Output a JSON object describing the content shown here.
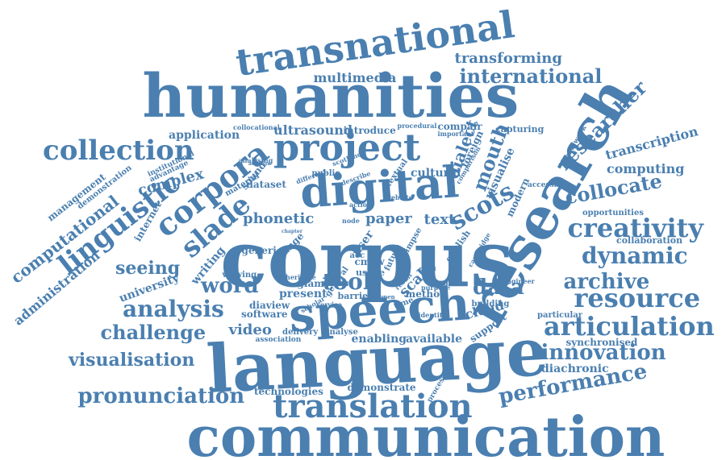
{
  "cloud": {
    "color": "#4a7fb0",
    "words": [
      {
        "text": "communication"
      },
      {
        "text": "language"
      },
      {
        "text": "corpus"
      },
      {
        "text": "speech"
      },
      {
        "text": "research"
      },
      {
        "text": "humanities"
      },
      {
        "text": "digital"
      },
      {
        "text": "project"
      },
      {
        "text": "transnational"
      },
      {
        "text": "translation"
      },
      {
        "text": "corpora"
      },
      {
        "text": "linguistic"
      },
      {
        "text": "slade"
      },
      {
        "text": "collection"
      },
      {
        "text": "scots"
      },
      {
        "text": "creativity"
      },
      {
        "text": "dynamic"
      },
      {
        "text": "resource"
      },
      {
        "text": "articulation"
      },
      {
        "text": "archive"
      },
      {
        "text": "analysis"
      },
      {
        "text": "word"
      },
      {
        "text": "tool"
      },
      {
        "text": "data"
      },
      {
        "text": "innovation"
      },
      {
        "text": "performance"
      },
      {
        "text": "pronunciation"
      },
      {
        "text": "visualisation"
      },
      {
        "text": "challenge"
      },
      {
        "text": "seeing"
      },
      {
        "text": "international"
      },
      {
        "text": "transforming"
      },
      {
        "text": "researcher"
      },
      {
        "text": "collocate"
      },
      {
        "text": "computational"
      },
      {
        "text": "administration"
      },
      {
        "text": "mouth"
      },
      {
        "text": "dialect"
      },
      {
        "text": "multimedia"
      },
      {
        "text": "ultrasound"
      },
      {
        "text": "application"
      },
      {
        "text": "complex"
      },
      {
        "text": "phonetic"
      },
      {
        "text": "paper"
      },
      {
        "text": "text"
      },
      {
        "text": "cultural"
      },
      {
        "text": "video"
      },
      {
        "text": "cloud"
      },
      {
        "text": "scale"
      },
      {
        "text": "enabling"
      },
      {
        "text": "available"
      },
      {
        "text": "present"
      },
      {
        "text": "software"
      },
      {
        "text": "diaview"
      },
      {
        "text": "university"
      },
      {
        "text": "writing"
      },
      {
        "text": "internet"
      },
      {
        "text": "management"
      },
      {
        "text": "demonstration"
      },
      {
        "text": "computing"
      },
      {
        "text": "transcription"
      },
      {
        "text": "visualise"
      },
      {
        "text": "foreign"
      },
      {
        "text": "modern"
      },
      {
        "text": "compair"
      },
      {
        "text": "capturing"
      },
      {
        "text": "introduce"
      },
      {
        "text": "collaboration"
      },
      {
        "text": "opportunities"
      },
      {
        "text": "synchronised"
      },
      {
        "text": "particular"
      },
      {
        "text": "diachronic"
      },
      {
        "text": "technologies"
      },
      {
        "text": "demonstrate"
      },
      {
        "text": "support"
      },
      {
        "text": "method"
      },
      {
        "text": "barrier"
      },
      {
        "text": "glam"
      },
      {
        "text": "cmsw"
      },
      {
        "text": "usage"
      },
      {
        "text": "user"
      },
      {
        "text": "generic"
      },
      {
        "text": "change"
      },
      {
        "text": "dataset"
      },
      {
        "text": "sound"
      },
      {
        "text": "material"
      },
      {
        "text": "institutional"
      },
      {
        "text": "advantage"
      },
      {
        "text": "analysing"
      },
      {
        "text": "collocational"
      },
      {
        "text": "procedural"
      },
      {
        "text": "important"
      },
      {
        "text": "comparison"
      },
      {
        "text": "framework"
      },
      {
        "text": "accessible"
      },
      {
        "text": "engineer"
      },
      {
        "text": "building"
      },
      {
        "text": "processing"
      },
      {
        "text": "identity"
      },
      {
        "text": "delivery"
      },
      {
        "text": "analyse"
      },
      {
        "text": "association"
      },
      {
        "text": "service"
      },
      {
        "text": "heritage"
      },
      {
        "text": "scholar"
      },
      {
        "text": "viewing"
      },
      {
        "text": "general"
      },
      {
        "text": "future"
      },
      {
        "text": "domain"
      },
      {
        "text": "purpose"
      },
      {
        "text": "result"
      },
      {
        "text": "english"
      },
      {
        "text": "glimpse"
      },
      {
        "text": "cambridge"
      },
      {
        "text": "website"
      },
      {
        "text": "scotland"
      },
      {
        "text": "public"
      },
      {
        "text": "describe"
      },
      {
        "text": "textual"
      },
      {
        "text": "different"
      },
      {
        "text": "action"
      },
      {
        "text": "open"
      },
      {
        "text": "time"
      },
      {
        "text": "acc"
      },
      {
        "text": "node"
      },
      {
        "text": "chapter"
      },
      {
        "text": "addition"
      },
      {
        "text": "multi"
      }
    ]
  }
}
